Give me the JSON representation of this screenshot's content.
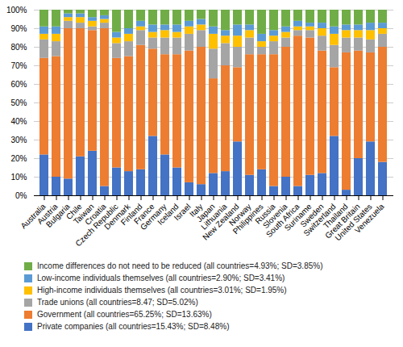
{
  "chart_data": {
    "type": "bar",
    "stacked": true,
    "categories": [
      "Australia",
      "Austria",
      "Bulgaria",
      "Chile",
      "Taiwan",
      "Croatia",
      "Czech Republic",
      "Denmark",
      "Finland",
      "France",
      "Germany",
      "Iceland",
      "Israel",
      "Italy",
      "Japan",
      "Lithuania",
      "New Zealand",
      "Norway",
      "Philippines",
      "Russia",
      "Slovenia",
      "South Africa",
      "Suriname",
      "Sweden",
      "Switzerland",
      "Thailand",
      "Great Britain",
      "United States",
      "Venezuela"
    ],
    "series": [
      {
        "name": "Private companies (all countries=15.43%; SD=8.48%)",
        "color": "#4472C4",
        "values": [
          22,
          10,
          9,
          21,
          24,
          5,
          15,
          13,
          14,
          32,
          22,
          15,
          7,
          6,
          12,
          13,
          29,
          11,
          14,
          5,
          10,
          5,
          11,
          12,
          32,
          3,
          20,
          29,
          18
        ]
      },
      {
        "name": "Government (all countries=65.25%; SD=13.63%)",
        "color": "#ED7D31",
        "values": [
          52,
          65,
          81,
          69,
          65,
          85,
          59,
          62,
          67,
          47,
          54,
          61,
          71,
          74,
          51,
          57,
          40,
          65,
          62,
          71,
          70,
          81,
          74,
          66,
          37,
          74,
          58,
          48,
          62
        ]
      },
      {
        "name": "Trade unions (all countries=8.47; SD=5.02%)",
        "color": "#A5A5A5",
        "values": [
          10,
          8,
          4,
          3,
          2,
          3,
          8,
          8,
          8,
          6,
          9,
          9,
          9,
          9,
          16,
          12,
          11,
          9,
          4,
          7,
          5,
          3,
          4,
          8,
          12,
          8,
          7,
          7,
          7
        ]
      },
      {
        "name": "High-income individuals themselves (all countries=3.01%; SD=1.95%)",
        "color": "#FFC000",
        "values": [
          3,
          4,
          2,
          3,
          3,
          2,
          3,
          4,
          2,
          3,
          4,
          3,
          4,
          3,
          8,
          4,
          6,
          4,
          3,
          3,
          3,
          2,
          2,
          4,
          6,
          4,
          4,
          5,
          3
        ]
      },
      {
        "name": "Low-income individuals themselves (all countries=2.90%; SD=3.41%)",
        "color": "#5B9BD5",
        "values": [
          4,
          4,
          2,
          2,
          2,
          2,
          3,
          3,
          3,
          4,
          3,
          4,
          3,
          3,
          4,
          3,
          6,
          3,
          4,
          3,
          3,
          3,
          2,
          3,
          4,
          3,
          3,
          4,
          3
        ]
      },
      {
        "name": "Income differences do not need to be reduced (all countries=4.93%; SD=3.85%)",
        "color": "#70AD47",
        "values": [
          9,
          9,
          2,
          2,
          4,
          3,
          12,
          10,
          6,
          8,
          8,
          8,
          6,
          5,
          9,
          11,
          8,
          8,
          13,
          11,
          9,
          6,
          7,
          7,
          9,
          8,
          8,
          7,
          7
        ]
      }
    ],
    "ylim": [
      0,
      100
    ],
    "yticks": [
      {
        "value": 0,
        "label": "0%"
      },
      {
        "value": 10,
        "label": "10%"
      },
      {
        "value": 20,
        "label": "20%"
      },
      {
        "value": 30,
        "label": "30%"
      },
      {
        "value": 40,
        "label": "40%"
      },
      {
        "value": 50,
        "label": "50%"
      },
      {
        "value": 60,
        "label": "60%"
      },
      {
        "value": 70,
        "label": "70%"
      },
      {
        "value": 80,
        "label": "80%"
      },
      {
        "value": 90,
        "label": "90%"
      },
      {
        "value": 100,
        "label": "100%"
      }
    ],
    "grid": true,
    "legend": "bottom"
  }
}
